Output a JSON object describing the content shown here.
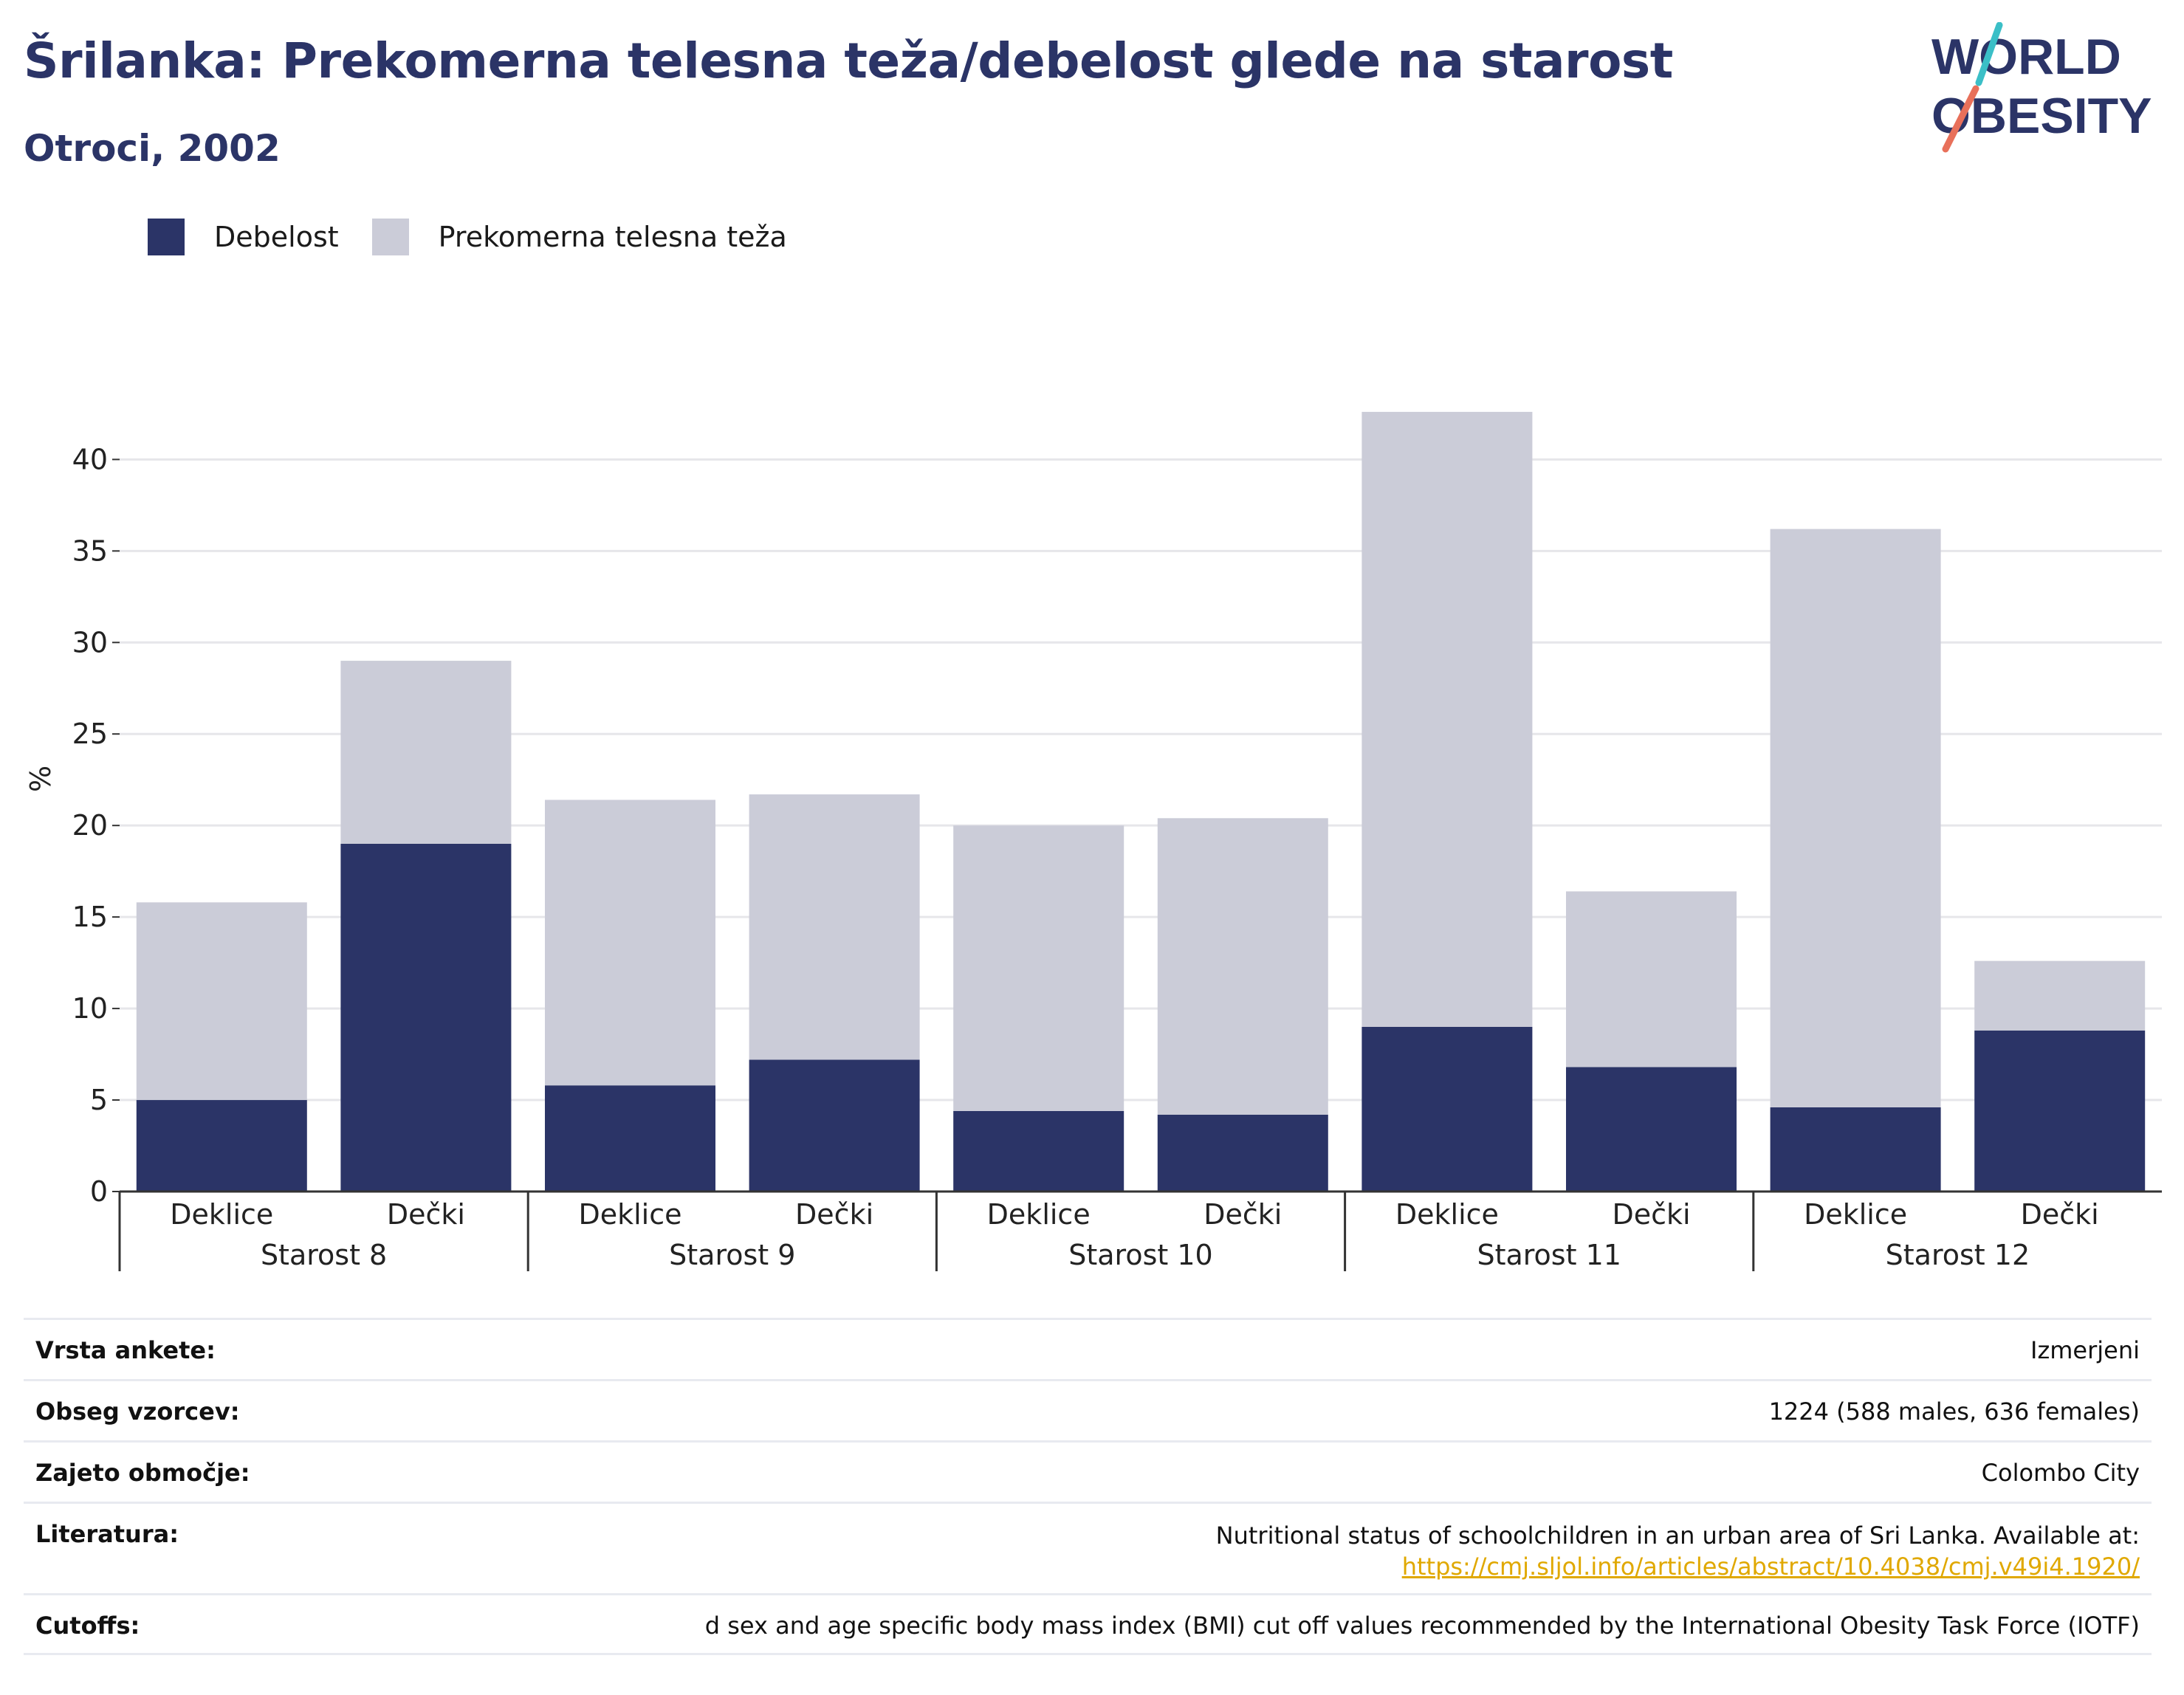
{
  "title": "Šrilanka: Prekomerna telesna teža/debelost glede na starost",
  "subtitle": "Otroci, 2002",
  "logo": {
    "line1": "WORLD",
    "line2": "OBESITY"
  },
  "colors": {
    "obesity": "#2b3467",
    "overweight": "#cbccd8",
    "title": "#2b3467",
    "link": "#e0a800"
  },
  "chart_data": {
    "type": "bar",
    "stacked": true,
    "ylabel": "%",
    "ylim": [
      0,
      43
    ],
    "yticks": [
      0,
      5,
      10,
      15,
      20,
      25,
      30,
      35,
      40
    ],
    "grid": true,
    "legend_position": "top-left",
    "groups": [
      "Starost 8",
      "Starost 9",
      "Starost 10",
      "Starost 11",
      "Starost 12"
    ],
    "categories": [
      "Deklice",
      "Dečki",
      "Deklice",
      "Dečki",
      "Deklice",
      "Dečki",
      "Deklice",
      "Dečki",
      "Deklice",
      "Dečki"
    ],
    "series": [
      {
        "name": "Debelost",
        "values": [
          5.0,
          19.0,
          5.8,
          7.2,
          4.4,
          4.2,
          9.0,
          6.8,
          4.6,
          8.8
        ]
      },
      {
        "name": "Prekomerna telesna teža",
        "values": [
          10.8,
          10.0,
          15.6,
          14.5,
          15.6,
          16.2,
          33.6,
          9.6,
          31.6,
          3.8
        ]
      }
    ]
  },
  "info": [
    {
      "label": "Vrsta ankete:",
      "value": "Izmerjeni"
    },
    {
      "label": "Obseg vzorcev:",
      "value": "1224 (588 males, 636 females)"
    },
    {
      "label": "Zajeto območje:",
      "value": "Colombo City"
    },
    {
      "label": "Literatura:",
      "value": "Nutritional status of schoolchildren in an urban area of Sri Lanka. Available at:",
      "link": "https://cmj.sljol.info/articles/abstract/10.4038/cmj.v49i4.1920/"
    },
    {
      "label": "Cutoffs:",
      "value": "d sex and age specific body mass index (BMI) cut off values recommended by the International Obesity Task Force (IOTF)"
    }
  ]
}
